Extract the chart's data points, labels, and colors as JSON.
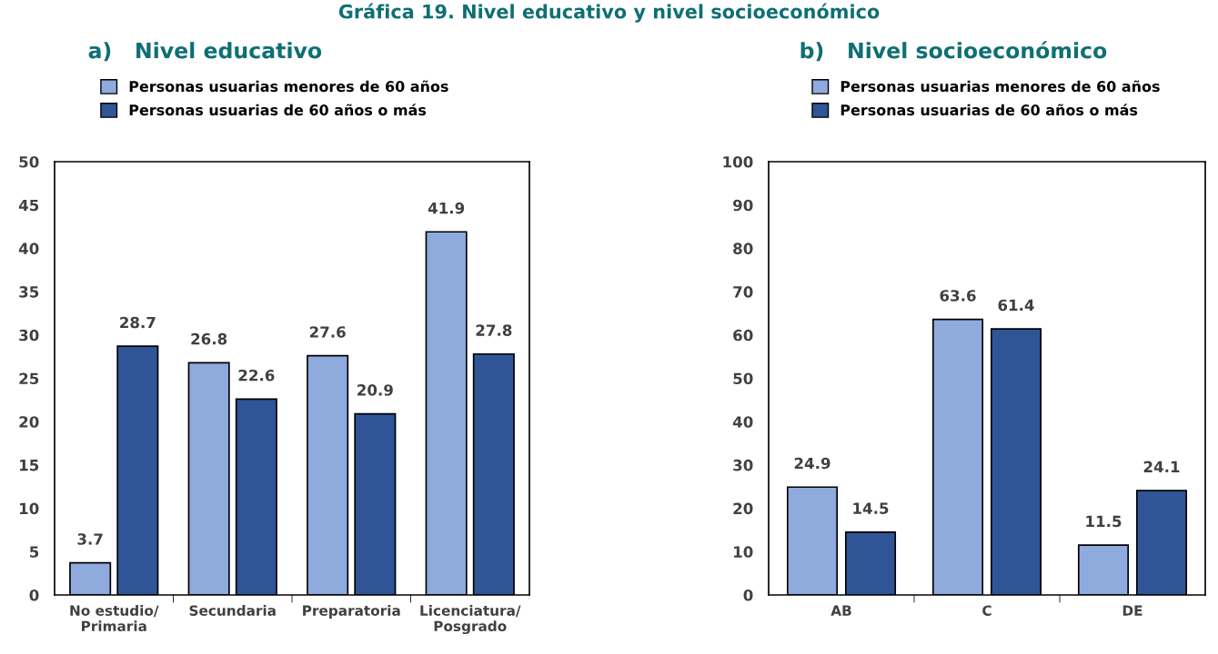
{
  "chart_data": [
    {
      "type": "bar",
      "title": "a)   Nivel educativo",
      "annotations": [
        "Gráfica 19. Nivel educativo y nivel socioeconómico"
      ],
      "categories": [
        "No estudio/\nPrimaria",
        "Secundaria",
        "Preparatoria",
        "Licenciatura/\nPosgrado"
      ],
      "series": [
        {
          "name": "Personas usuarias menores de 60 años",
          "color": "#8faadc",
          "values": [
            3.7,
            26.8,
            27.6,
            41.9
          ]
        },
        {
          "name": "Personas usuarias de 60 años o más",
          "color": "#2f5597",
          "values": [
            28.7,
            22.6,
            20.9,
            27.8
          ]
        }
      ],
      "ylim": [
        0,
        50
      ],
      "yticks": [
        0,
        5,
        10,
        15,
        20,
        25,
        30,
        35,
        40,
        45,
        50
      ],
      "data_labels": true,
      "grid": false,
      "legend": "top left"
    },
    {
      "type": "bar",
      "title": "b)   Nivel socioeconómico",
      "categories": [
        "AB",
        "C",
        "DE"
      ],
      "series": [
        {
          "name": "Personas usuarias menores de 60 años",
          "color": "#8faadc",
          "values": [
            24.9,
            63.6,
            11.5
          ]
        },
        {
          "name": "Personas usuarias de 60 años o más",
          "color": "#2f5597",
          "values": [
            14.5,
            61.4,
            24.1
          ]
        }
      ],
      "ylim": [
        0,
        100
      ],
      "yticks": [
        0,
        10,
        20,
        30,
        40,
        50,
        60,
        70,
        80,
        90,
        100
      ],
      "data_labels": true,
      "grid": false,
      "legend": "top left"
    }
  ]
}
